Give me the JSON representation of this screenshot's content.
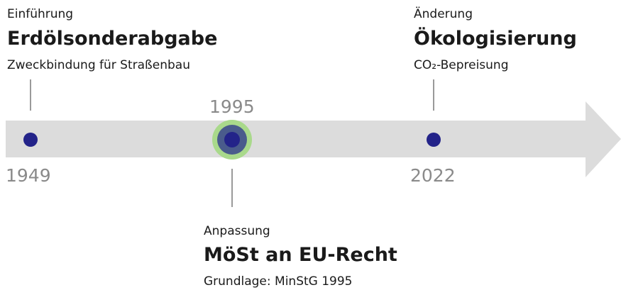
{
  "events": [
    {
      "year": "1949",
      "kicker": "Einführung",
      "title": "Erdölsonderabgabe",
      "subtitle": "Zweckbindung für Straßenbau"
    },
    {
      "year": "1995",
      "kicker": "Anpassung",
      "title": "MöSt an EU-Recht",
      "subtitle": "Grundlage: MinStG 1995"
    },
    {
      "year": "2022",
      "kicker": "Änderung",
      "title": "Ökologisierung",
      "subtitle": "CO₂-Bepreisung"
    }
  ]
}
